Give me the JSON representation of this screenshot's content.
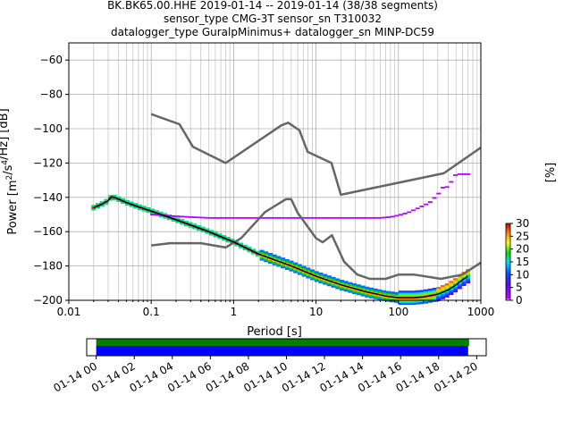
{
  "title_lines": [
    "BK.BK65.00.HHE   2019-01-14 -- 2019-01-14  (38/38 segments)",
    "sensor_type CMG-3T sensor_sn T310032",
    "datalogger_type GuralpMinimus+ datalogger_sn MINP-DC59"
  ],
  "chart_data": [
    {
      "type": "heatmap",
      "title": "BK.BK65.00.HHE   2019-01-14 -- 2019-01-14  (38/38 segments)",
      "xlabel": "Period [s]",
      "ylabel": "Power [m^2/s^4/Hz] [dB]",
      "x_scale": "log",
      "xlim": [
        0.01,
        1000
      ],
      "ylim": [
        -200,
        -50
      ],
      "x_ticks": [
        "0.01",
        "0.1",
        "1",
        "10",
        "100",
        "1000"
      ],
      "y_ticks": [
        "-60",
        "-80",
        "-100",
        "-120",
        "-140",
        "-160",
        "-180",
        "-200"
      ],
      "grid": true,
      "colorbar": {
        "label": "[%]",
        "min": 0,
        "max": 30,
        "ticks": [
          "0",
          "5",
          "10",
          "15",
          "20",
          "25",
          "30"
        ],
        "colormap": "pqlx"
      },
      "series": [
        {
          "role": "high-noise-model",
          "x": [
            0.1,
            0.22,
            0.32,
            0.8,
            3.8,
            4.6,
            6.3,
            7.9,
            15.4,
            20,
            354.8,
            1000
          ],
          "y": [
            -91.5,
            -97.4,
            -110.5,
            -120,
            -98,
            -96.5,
            -101,
            -113.5,
            -120,
            -138.5,
            -126,
            -111
          ]
        },
        {
          "role": "low-noise-model",
          "x": [
            0.1,
            0.17,
            0.4,
            0.8,
            1.24,
            2.4,
            4.3,
            5,
            6,
            10,
            12,
            15.6,
            21.9,
            31.6,
            45,
            70,
            101,
            154,
            328,
            600,
            1000
          ],
          "y": [
            -168,
            -166.7,
            -166.7,
            -169.2,
            -163.7,
            -148.6,
            -141.1,
            -141.1,
            -149,
            -163.8,
            -166.2,
            -162.1,
            -177.5,
            -185,
            -187.5,
            -187.5,
            -185,
            -185,
            -187.5,
            -185,
            -178
          ]
        },
        {
          "role": "median-psd",
          "x": [
            0.02,
            0.025,
            0.03,
            0.033,
            0.04,
            0.05,
            0.07,
            0.1,
            0.2,
            0.5,
            1,
            2,
            5,
            10,
            20,
            40,
            70,
            100,
            150,
            200,
            300,
            400,
            500,
            600,
            700
          ],
          "y": [
            -146,
            -144,
            -142,
            -139.5,
            -141,
            -143,
            -145.5,
            -148,
            -153,
            -160,
            -166,
            -173,
            -180,
            -186,
            -191,
            -195,
            -197.5,
            -198.5,
            -198.5,
            -198,
            -196.5,
            -194,
            -191,
            -188,
            -186
          ]
        },
        {
          "role": "secondary-mode",
          "x": [
            0.1,
            0.2,
            0.3,
            0.5,
            1,
            2,
            5,
            10,
            20,
            40,
            60,
            80,
            100,
            130,
            180,
            240,
            300,
            350,
            400,
            500,
            600,
            700
          ],
          "y": [
            -150,
            -151,
            -151.5,
            -152,
            -152,
            -152,
            -152,
            -152,
            -152,
            -152,
            -152,
            -151.5,
            -150.5,
            -149,
            -146,
            -143,
            -138.5,
            -134,
            -134,
            -126.5,
            -126.5,
            -126.5
          ]
        }
      ]
    },
    {
      "type": "bar",
      "role": "data-coverage",
      "x_ticks": [
        "01-14 00",
        "01-14 02",
        "01-14 04",
        "01-14 06",
        "01-14 08",
        "01-14 10",
        "01-14 12",
        "01-14 14",
        "01-14 16",
        "01-14 18",
        "01-14 20"
      ],
      "xlim_hours": [
        -0.5,
        20.5
      ],
      "series": [
        {
          "name": "",
          "color": "#008000",
          "start_hour": 0.0,
          "end_hour": 19.6
        },
        {
          "name": "",
          "color": "#0000ff",
          "start_hour": 0.0,
          "end_hour": 19.55
        }
      ]
    }
  ]
}
